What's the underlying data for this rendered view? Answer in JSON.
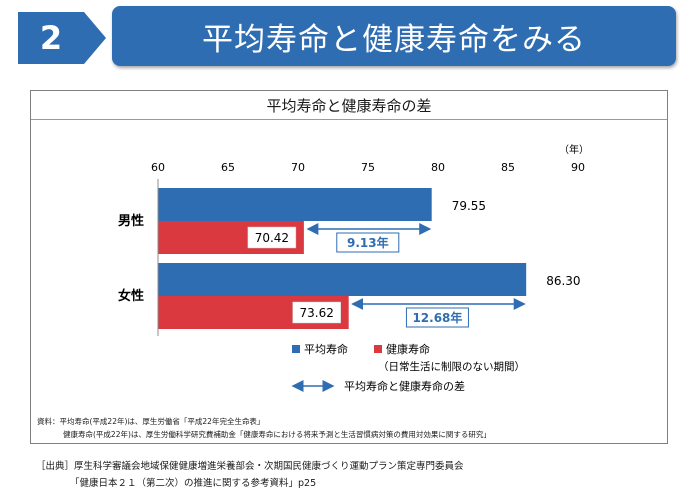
{
  "header": {
    "number": "2",
    "title": "平均寿命と健康寿命をみる"
  },
  "chart_data": {
    "type": "bar",
    "title": "平均寿命と健康寿命の差",
    "unit": "（年）",
    "xlim": [
      60,
      90
    ],
    "ticks": [
      60,
      65,
      70,
      75,
      80,
      85,
      90
    ],
    "categories": [
      "男性",
      "女性"
    ],
    "series": [
      {
        "name": "平均寿命",
        "color": "#2f6db3",
        "values": [
          79.55,
          86.3
        ],
        "labels": [
          "79.55",
          "86.30"
        ]
      },
      {
        "name": "健康寿命",
        "color": "#d9393f",
        "values": [
          70.42,
          73.62
        ],
        "labels": [
          "70.42",
          "73.62"
        ]
      }
    ],
    "gaps": [
      "9.13年",
      "12.68年"
    ],
    "legend": {
      "healthy_sub": "（日常生活に制限のない期間）",
      "gap_label": "平均寿命と健康寿命の差"
    },
    "grid": false
  },
  "notes": {
    "line1": "資料：平均寿命(平成22年)は、厚生労働省「平成22年完全生命表」",
    "line2": "健康寿命(平成22年)は、厚生労働科学研究費補助金「健康寿命における将来予測と生活習慣病対策の費用対効果に関する研究」"
  },
  "source": {
    "line1": "［出典］厚生科学審議会地域保健健康増進栄養部会・次期国民健康づくり運動プラン策定専門委員会",
    "line2": "「健康日本２１（第二次）の推進に関する参考資料」p25"
  },
  "colors": {
    "accent": "#2f6db3",
    "blue": "#2f6db3",
    "red": "#d9393f"
  }
}
